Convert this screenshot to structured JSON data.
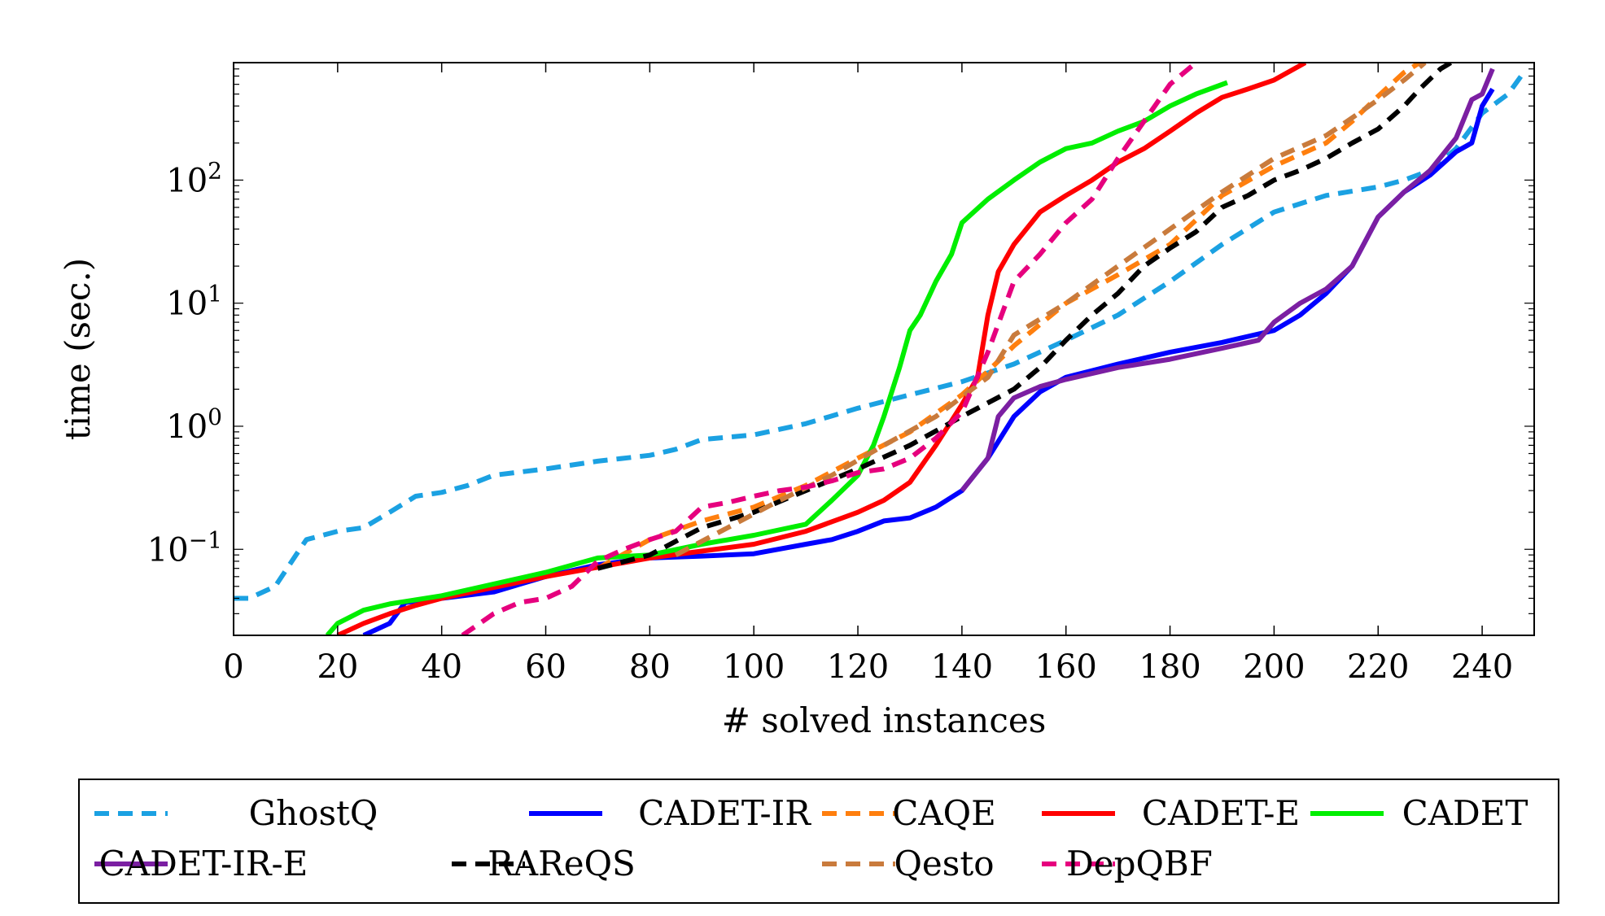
{
  "chart_data": {
    "type": "line",
    "title": "",
    "xlabel": "# solved instances",
    "ylabel": "time (sec.)",
    "xlim": [
      0,
      250
    ],
    "ylim": [
      0.02,
      900
    ],
    "y_scale": "log",
    "grid": false,
    "legend_position": "bottom",
    "x_ticks": [
      "0",
      "20",
      "40",
      "60",
      "80",
      "100",
      "120",
      "140",
      "160",
      "180",
      "200",
      "220",
      "240"
    ],
    "y_ticks": [
      {
        "value": 0.1,
        "base": "10",
        "exp": "−1"
      },
      {
        "value": 1,
        "base": "10",
        "exp": "0"
      },
      {
        "value": 10,
        "base": "10",
        "exp": "1"
      },
      {
        "value": 100,
        "base": "10",
        "exp": "2"
      }
    ],
    "series": [
      {
        "name": "GhostQ",
        "color": "#1ba1e2",
        "dash": "dashed",
        "points": [
          [
            0,
            0.04
          ],
          [
            3,
            0.04
          ],
          [
            8,
            0.05
          ],
          [
            12,
            0.09
          ],
          [
            14,
            0.12
          ],
          [
            20,
            0.14
          ],
          [
            25,
            0.15
          ],
          [
            30,
            0.2
          ],
          [
            35,
            0.27
          ],
          [
            40,
            0.29
          ],
          [
            45,
            0.33
          ],
          [
            50,
            0.4
          ],
          [
            60,
            0.45
          ],
          [
            70,
            0.52
          ],
          [
            80,
            0.58
          ],
          [
            85,
            0.65
          ],
          [
            90,
            0.78
          ],
          [
            100,
            0.85
          ],
          [
            110,
            1.05
          ],
          [
            120,
            1.4
          ],
          [
            130,
            1.8
          ],
          [
            140,
            2.3
          ],
          [
            150,
            3.2
          ],
          [
            160,
            5
          ],
          [
            170,
            8
          ],
          [
            180,
            15
          ],
          [
            190,
            30
          ],
          [
            200,
            55
          ],
          [
            210,
            75
          ],
          [
            220,
            88
          ],
          [
            225,
            100
          ],
          [
            230,
            120
          ],
          [
            235,
            180
          ],
          [
            240,
            350
          ],
          [
            245,
            500
          ],
          [
            248,
            750
          ]
        ]
      },
      {
        "name": "CADET-IR",
        "color": "#0000ff",
        "dash": "solid",
        "points": [
          [
            25,
            0.018
          ],
          [
            30,
            0.025
          ],
          [
            33,
            0.037
          ],
          [
            40,
            0.04
          ],
          [
            50,
            0.045
          ],
          [
            60,
            0.06
          ],
          [
            70,
            0.075
          ],
          [
            80,
            0.085
          ],
          [
            90,
            0.088
          ],
          [
            100,
            0.092
          ],
          [
            110,
            0.11
          ],
          [
            115,
            0.12
          ],
          [
            120,
            0.14
          ],
          [
            125,
            0.17
          ],
          [
            130,
            0.18
          ],
          [
            135,
            0.22
          ],
          [
            140,
            0.3
          ],
          [
            145,
            0.55
          ],
          [
            150,
            1.2
          ],
          [
            155,
            1.9
          ],
          [
            160,
            2.5
          ],
          [
            170,
            3.2
          ],
          [
            180,
            4
          ],
          [
            190,
            4.8
          ],
          [
            200,
            6
          ],
          [
            205,
            8
          ],
          [
            210,
            12
          ],
          [
            215,
            20
          ],
          [
            220,
            50
          ],
          [
            225,
            80
          ],
          [
            230,
            110
          ],
          [
            235,
            170
          ],
          [
            238,
            200
          ],
          [
            240,
            400
          ],
          [
            242,
            550
          ]
        ]
      },
      {
        "name": "CAQE",
        "color": "#ff7f0e",
        "dash": "dashed",
        "points": [
          [
            70,
            0.07
          ],
          [
            80,
            0.12
          ],
          [
            90,
            0.17
          ],
          [
            100,
            0.22
          ],
          [
            110,
            0.33
          ],
          [
            120,
            0.55
          ],
          [
            130,
            0.9
          ],
          [
            140,
            1.8
          ],
          [
            145,
            2.8
          ],
          [
            150,
            4.5
          ],
          [
            160,
            10
          ],
          [
            170,
            17
          ],
          [
            180,
            30
          ],
          [
            190,
            75
          ],
          [
            200,
            130
          ],
          [
            210,
            200
          ],
          [
            215,
            300
          ],
          [
            220,
            480
          ],
          [
            225,
            750
          ],
          [
            228,
            900
          ]
        ]
      },
      {
        "name": "CADET-E",
        "color": "#ff0000",
        "dash": "solid",
        "points": [
          [
            20,
            0.017
          ],
          [
            25,
            0.025
          ],
          [
            30,
            0.03
          ],
          [
            35,
            0.035
          ],
          [
            40,
            0.04
          ],
          [
            60,
            0.06
          ],
          [
            80,
            0.085
          ],
          [
            100,
            0.11
          ],
          [
            110,
            0.14
          ],
          [
            120,
            0.2
          ],
          [
            125,
            0.25
          ],
          [
            130,
            0.35
          ],
          [
            135,
            0.7
          ],
          [
            140,
            1.5
          ],
          [
            143,
            2.5
          ],
          [
            145,
            8
          ],
          [
            147,
            18
          ],
          [
            150,
            30
          ],
          [
            155,
            55
          ],
          [
            160,
            75
          ],
          [
            165,
            100
          ],
          [
            170,
            140
          ],
          [
            175,
            180
          ],
          [
            180,
            250
          ],
          [
            185,
            350
          ],
          [
            190,
            470
          ],
          [
            195,
            550
          ],
          [
            200,
            650
          ],
          [
            206,
            900
          ]
        ]
      },
      {
        "name": "CADET",
        "color": "#00ee00",
        "dash": "solid",
        "points": [
          [
            18,
            0.017
          ],
          [
            20,
            0.025
          ],
          [
            25,
            0.032
          ],
          [
            30,
            0.036
          ],
          [
            40,
            0.042
          ],
          [
            60,
            0.065
          ],
          [
            70,
            0.085
          ],
          [
            80,
            0.09
          ],
          [
            90,
            0.11
          ],
          [
            100,
            0.13
          ],
          [
            110,
            0.16
          ],
          [
            115,
            0.25
          ],
          [
            120,
            0.4
          ],
          [
            123,
            0.7
          ],
          [
            125,
            1.2
          ],
          [
            128,
            3
          ],
          [
            130,
            6
          ],
          [
            132,
            8
          ],
          [
            135,
            15
          ],
          [
            138,
            25
          ],
          [
            140,
            45
          ],
          [
            145,
            70
          ],
          [
            150,
            100
          ],
          [
            155,
            140
          ],
          [
            160,
            180
          ],
          [
            165,
            200
          ],
          [
            170,
            250
          ],
          [
            175,
            300
          ],
          [
            180,
            400
          ],
          [
            185,
            500
          ],
          [
            191,
            620
          ]
        ]
      },
      {
        "name": "CADET-IR-E",
        "color": "#7b1fa2",
        "dash": "solid",
        "points": [
          [
            140,
            0.3
          ],
          [
            145,
            0.55
          ],
          [
            147,
            1.2
          ],
          [
            150,
            1.7
          ],
          [
            155,
            2.1
          ],
          [
            160,
            2.4
          ],
          [
            170,
            3
          ],
          [
            180,
            3.5
          ],
          [
            190,
            4.3
          ],
          [
            197,
            5
          ],
          [
            200,
            7
          ],
          [
            205,
            10
          ],
          [
            210,
            13
          ],
          [
            215,
            20
          ],
          [
            220,
            50
          ],
          [
            225,
            80
          ],
          [
            230,
            120
          ],
          [
            235,
            220
          ],
          [
            238,
            450
          ],
          [
            240,
            500
          ],
          [
            242,
            800
          ]
        ]
      },
      {
        "name": "RAReQS",
        "color": "#000000",
        "dash": "dashed",
        "points": [
          [
            70,
            0.07
          ],
          [
            80,
            0.09
          ],
          [
            90,
            0.15
          ],
          [
            100,
            0.2
          ],
          [
            110,
            0.3
          ],
          [
            120,
            0.45
          ],
          [
            130,
            0.7
          ],
          [
            140,
            1.2
          ],
          [
            150,
            2
          ],
          [
            155,
            3
          ],
          [
            160,
            5
          ],
          [
            165,
            8
          ],
          [
            170,
            12
          ],
          [
            175,
            20
          ],
          [
            180,
            28
          ],
          [
            185,
            38
          ],
          [
            190,
            60
          ],
          [
            195,
            75
          ],
          [
            200,
            100
          ],
          [
            205,
            120
          ],
          [
            210,
            150
          ],
          [
            215,
            200
          ],
          [
            220,
            260
          ],
          [
            225,
            400
          ],
          [
            228,
            550
          ],
          [
            232,
            800
          ],
          [
            234,
            900
          ]
        ]
      },
      {
        "name": "Qesto",
        "color": "#c97b3c",
        "dash": "dashed",
        "points": [
          [
            85,
            0.09
          ],
          [
            95,
            0.15
          ],
          [
            105,
            0.25
          ],
          [
            115,
            0.4
          ],
          [
            125,
            0.7
          ],
          [
            135,
            1.2
          ],
          [
            145,
            2.5
          ],
          [
            150,
            5.5
          ],
          [
            160,
            10
          ],
          [
            170,
            20
          ],
          [
            180,
            40
          ],
          [
            190,
            80
          ],
          [
            200,
            150
          ],
          [
            210,
            230
          ],
          [
            215,
            320
          ],
          [
            220,
            450
          ],
          [
            225,
            650
          ],
          [
            229,
            900
          ]
        ]
      },
      {
        "name": "DepQBF",
        "color": "#e6007e",
        "dash": "dashed",
        "points": [
          [
            44,
            0.018
          ],
          [
            50,
            0.03
          ],
          [
            55,
            0.037
          ],
          [
            60,
            0.04
          ],
          [
            65,
            0.05
          ],
          [
            70,
            0.08
          ],
          [
            75,
            0.1
          ],
          [
            80,
            0.12
          ],
          [
            85,
            0.14
          ],
          [
            90,
            0.22
          ],
          [
            95,
            0.24
          ],
          [
            100,
            0.27
          ],
          [
            105,
            0.3
          ],
          [
            110,
            0.32
          ],
          [
            115,
            0.36
          ],
          [
            120,
            0.42
          ],
          [
            125,
            0.45
          ],
          [
            130,
            0.55
          ],
          [
            135,
            0.8
          ],
          [
            140,
            1.3
          ],
          [
            145,
            4
          ],
          [
            150,
            15
          ],
          [
            155,
            25
          ],
          [
            160,
            45
          ],
          [
            165,
            70
          ],
          [
            170,
            150
          ],
          [
            175,
            300
          ],
          [
            180,
            600
          ],
          [
            185,
            900
          ]
        ]
      }
    ]
  }
}
